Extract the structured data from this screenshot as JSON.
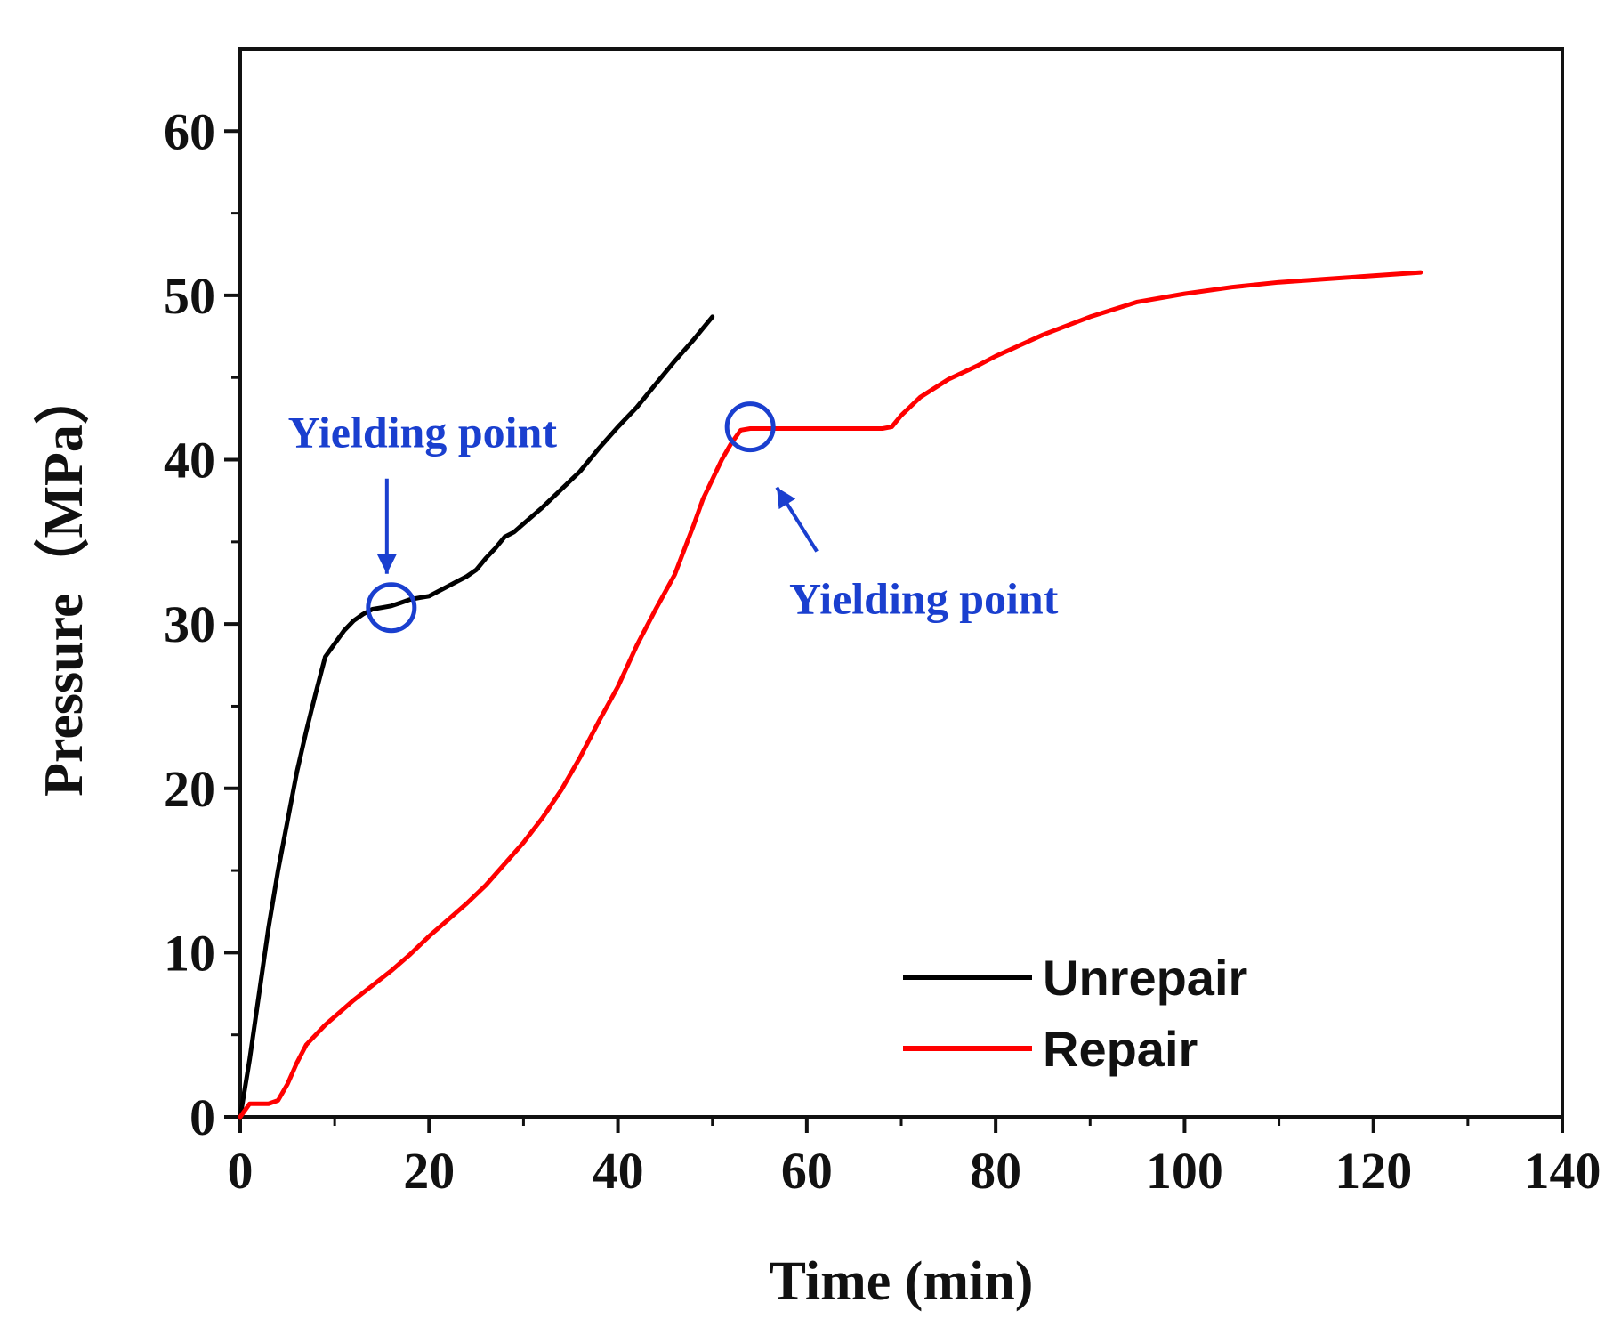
{
  "chart_data": {
    "type": "line",
    "title": "",
    "xlabel": "Time (min)",
    "ylabel": "Pressure（MPa）",
    "xlim": [
      0,
      140
    ],
    "ylim": [
      0,
      65
    ],
    "xticks": [
      0,
      20,
      40,
      60,
      80,
      100,
      120,
      140
    ],
    "xtick_labels": [
      "0",
      "20",
      "40",
      "60",
      "80",
      "100",
      "120",
      "140"
    ],
    "yticks": [
      0,
      10,
      20,
      30,
      40,
      50,
      60
    ],
    "ytick_labels": [
      "0",
      "10",
      "20",
      "30",
      "40",
      "50",
      "60"
    ],
    "grid": false,
    "legend_position": "bottom-right",
    "series": [
      {
        "name": "Unrepair",
        "color": "#000000",
        "x": [
          0,
          1,
          2,
          3,
          4,
          5,
          6,
          7,
          8,
          9,
          10,
          11,
          12,
          13,
          14,
          15,
          16,
          17,
          18,
          19,
          20,
          22,
          24,
          25,
          26,
          27,
          28,
          29,
          30,
          32,
          34,
          36,
          38,
          40,
          42,
          44,
          46,
          48,
          49,
          50
        ],
        "y": [
          0,
          3.5,
          7.5,
          11.5,
          15,
          18,
          21,
          23.5,
          25.8,
          28,
          28.8,
          29.6,
          30.2,
          30.6,
          30.9,
          31.0,
          31.1,
          31.3,
          31.5,
          31.6,
          31.7,
          32.3,
          32.9,
          33.3,
          34.0,
          34.6,
          35.3,
          35.6,
          36.1,
          37.1,
          38.2,
          39.3,
          40.7,
          42.0,
          43.2,
          44.6,
          46.0,
          47.3,
          48.0,
          48.7
        ]
      },
      {
        "name": "Repair",
        "color": "#ff0000",
        "x": [
          0,
          1,
          2,
          3,
          4,
          5,
          6,
          7,
          8,
          9,
          10,
          12,
          14,
          16,
          18,
          20,
          22,
          24,
          26,
          28,
          30,
          32,
          34,
          36,
          38,
          40,
          42,
          44,
          46,
          47,
          48,
          49,
          50,
          51,
          52,
          53,
          54,
          55,
          56,
          58,
          60,
          62,
          64,
          66,
          68,
          69,
          70,
          72,
          75,
          78,
          80,
          85,
          90,
          95,
          100,
          105,
          110,
          115,
          120,
          125
        ],
        "y": [
          0,
          0.8,
          0.8,
          0.8,
          1.0,
          2.0,
          3.3,
          4.4,
          5.0,
          5.6,
          6.1,
          7.1,
          8.0,
          8.9,
          9.9,
          11.0,
          12.0,
          13.0,
          14.1,
          15.4,
          16.7,
          18.2,
          19.9,
          21.9,
          24.1,
          26.2,
          28.7,
          30.9,
          33.0,
          34.5,
          36.0,
          37.6,
          38.8,
          40.0,
          41.0,
          41.8,
          41.9,
          41.9,
          41.9,
          41.9,
          41.9,
          41.9,
          41.9,
          41.9,
          41.9,
          42.0,
          42.7,
          43.8,
          44.9,
          45.7,
          46.3,
          47.6,
          48.7,
          49.6,
          50.1,
          50.5,
          50.8,
          51.0,
          51.2,
          51.4
        ]
      }
    ],
    "annotations": [
      {
        "text": "Yielding point",
        "color": "#1a3fcf",
        "series": "Unrepair",
        "x": 16,
        "y": 31.0,
        "arrow": "down"
      },
      {
        "text": "Yielding point",
        "color": "#1a3fcf",
        "series": "Repair",
        "x": 54,
        "y": 42.0,
        "arrow": "up-left"
      }
    ]
  }
}
